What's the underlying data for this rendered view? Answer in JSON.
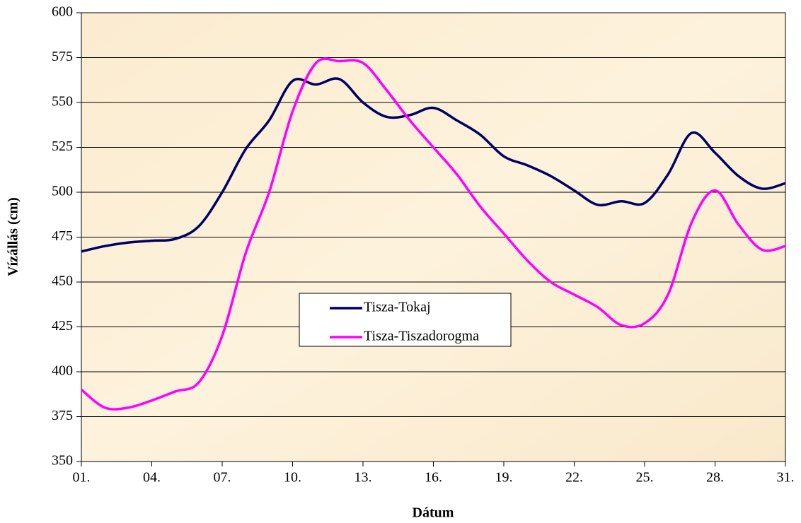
{
  "chart_data": {
    "type": "line",
    "categories": [
      "01.",
      null,
      null,
      "04.",
      null,
      null,
      "07.",
      null,
      null,
      "10.",
      null,
      null,
      "13.",
      null,
      null,
      "16.",
      null,
      null,
      "19.",
      null,
      null,
      "22.",
      null,
      null,
      "25.",
      null,
      null,
      "28.",
      null,
      null,
      "31."
    ],
    "series": [
      {
        "name": "Tisza-Tokaj",
        "color": "#000066",
        "values": [
          467,
          470,
          472,
          473,
          474,
          481,
          500,
          524,
          540,
          562,
          560,
          563,
          550,
          542,
          543,
          547,
          540,
          532,
          520,
          515,
          509,
          501,
          493,
          495,
          494,
          510,
          533,
          522,
          509,
          502,
          505
        ]
      },
      {
        "name": "Tisza-Tiszadorogma",
        "color": "#ff00ff",
        "values": [
          390,
          380,
          380,
          384,
          389,
          394,
          420,
          466,
          500,
          545,
          572,
          573,
          572,
          557,
          540,
          525,
          510,
          492,
          477,
          462,
          450,
          443,
          436,
          426,
          427,
          443,
          483,
          501,
          482,
          468,
          470
        ]
      }
    ],
    "ylim": [
      350,
      600
    ],
    "yticks": [
      350,
      375,
      400,
      425,
      450,
      475,
      500,
      525,
      550,
      575,
      600
    ],
    "y_label": "Vízállás (cm)",
    "x_label": "Dátum",
    "grid": true
  }
}
